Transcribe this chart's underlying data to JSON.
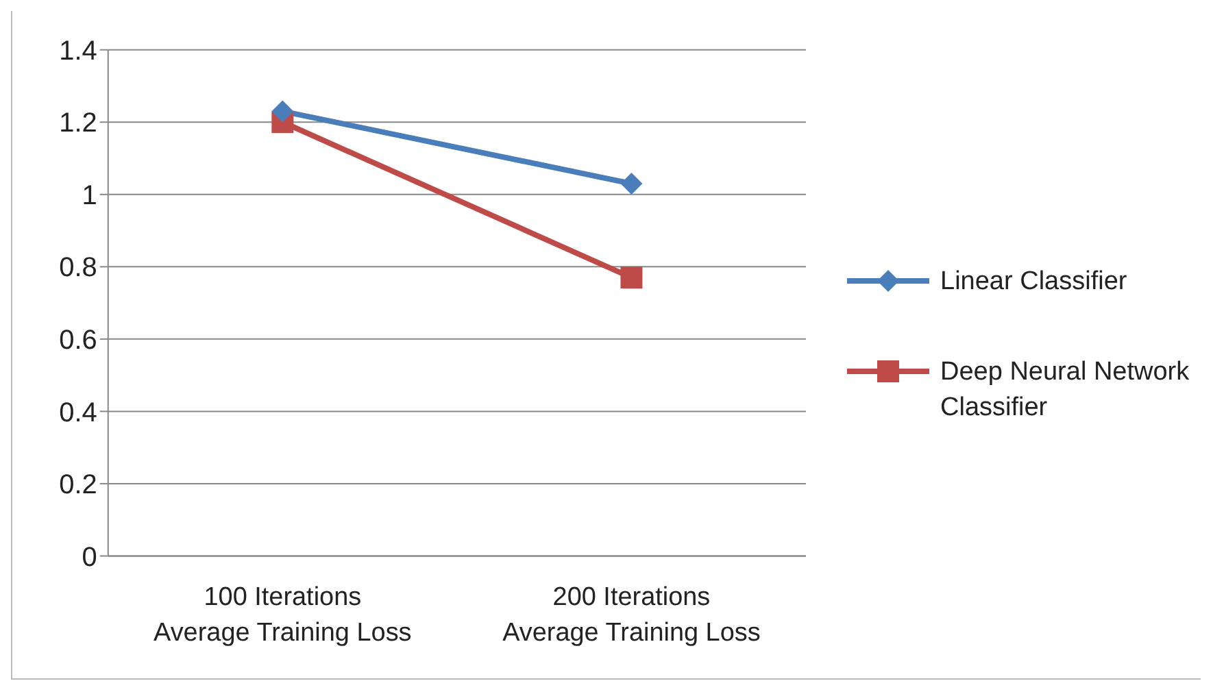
{
  "chart_data": {
    "type": "line",
    "categories": [
      "100 Iterations Average Training Loss",
      "200 Iterations Average Training Loss"
    ],
    "series": [
      {
        "name": "Linear Classifier",
        "color": "#4a7ebb",
        "values": [
          1.23,
          1.03
        ],
        "marker": "diamond"
      },
      {
        "name": "Deep Neural Network Classifier",
        "color": "#be4b48",
        "values": [
          1.2,
          0.77
        ],
        "marker": "square"
      }
    ],
    "ylim": [
      0,
      1.4
    ],
    "yticks": [
      0,
      0.2,
      0.4,
      0.6,
      0.8,
      1,
      1.2,
      1.4
    ],
    "grid": "y",
    "legend": "right"
  }
}
